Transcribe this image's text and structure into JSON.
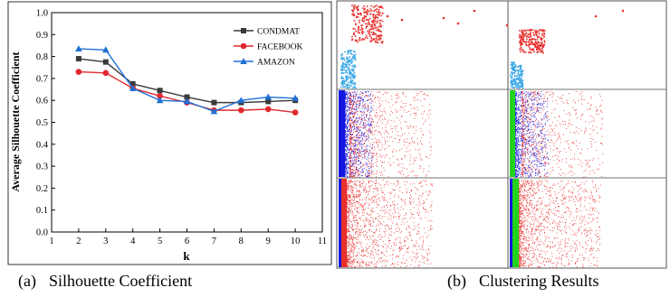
{
  "chart_data": {
    "type": "line",
    "xlabel": "k",
    "ylabel": "Average Silhouette Coefficient",
    "xlim": [
      1,
      11
    ],
    "ylim": [
      0.0,
      1.0
    ],
    "x_ticks": [
      "1",
      "2",
      "3",
      "4",
      "5",
      "6",
      "7",
      "8",
      "9",
      "10",
      "11"
    ],
    "y_ticks": [
      "0.0",
      "0.1",
      "0.2",
      "0.3",
      "0.4",
      "0.5",
      "0.6",
      "0.7",
      "0.8",
      "0.9",
      "1.0"
    ],
    "x": [
      2,
      3,
      4,
      5,
      6,
      7,
      8,
      9,
      10
    ],
    "legend_position": "top-right",
    "grid": false,
    "series": [
      {
        "name": "CONDMAT",
        "values": [
          0.79,
          0.775,
          0.675,
          0.645,
          0.615,
          0.59,
          0.59,
          0.595,
          0.6
        ],
        "color": "#3a3a3a",
        "marker": "square"
      },
      {
        "name": "FACEBOOK",
        "values": [
          0.73,
          0.725,
          0.655,
          0.62,
          0.59,
          0.555,
          0.555,
          0.56,
          0.545
        ],
        "color": "#e0282e",
        "marker": "circle"
      },
      {
        "name": "AMAZON",
        "values": [
          0.835,
          0.83,
          0.655,
          0.6,
          0.595,
          0.55,
          0.6,
          0.615,
          0.61
        ],
        "color": "#1f6fd6",
        "marker": "triangle"
      }
    ]
  },
  "captions": {
    "a_label": "(a)",
    "a_text": "Silhouette Coefficient",
    "b_label": "(b)",
    "b_text": "Clustering Results"
  },
  "clustering_panel": {
    "colors": {
      "red": "#e8302c",
      "blue": "#1515e0",
      "green": "#22d31e",
      "cyan": "#3aa8e6",
      "divider": "#707070"
    }
  }
}
